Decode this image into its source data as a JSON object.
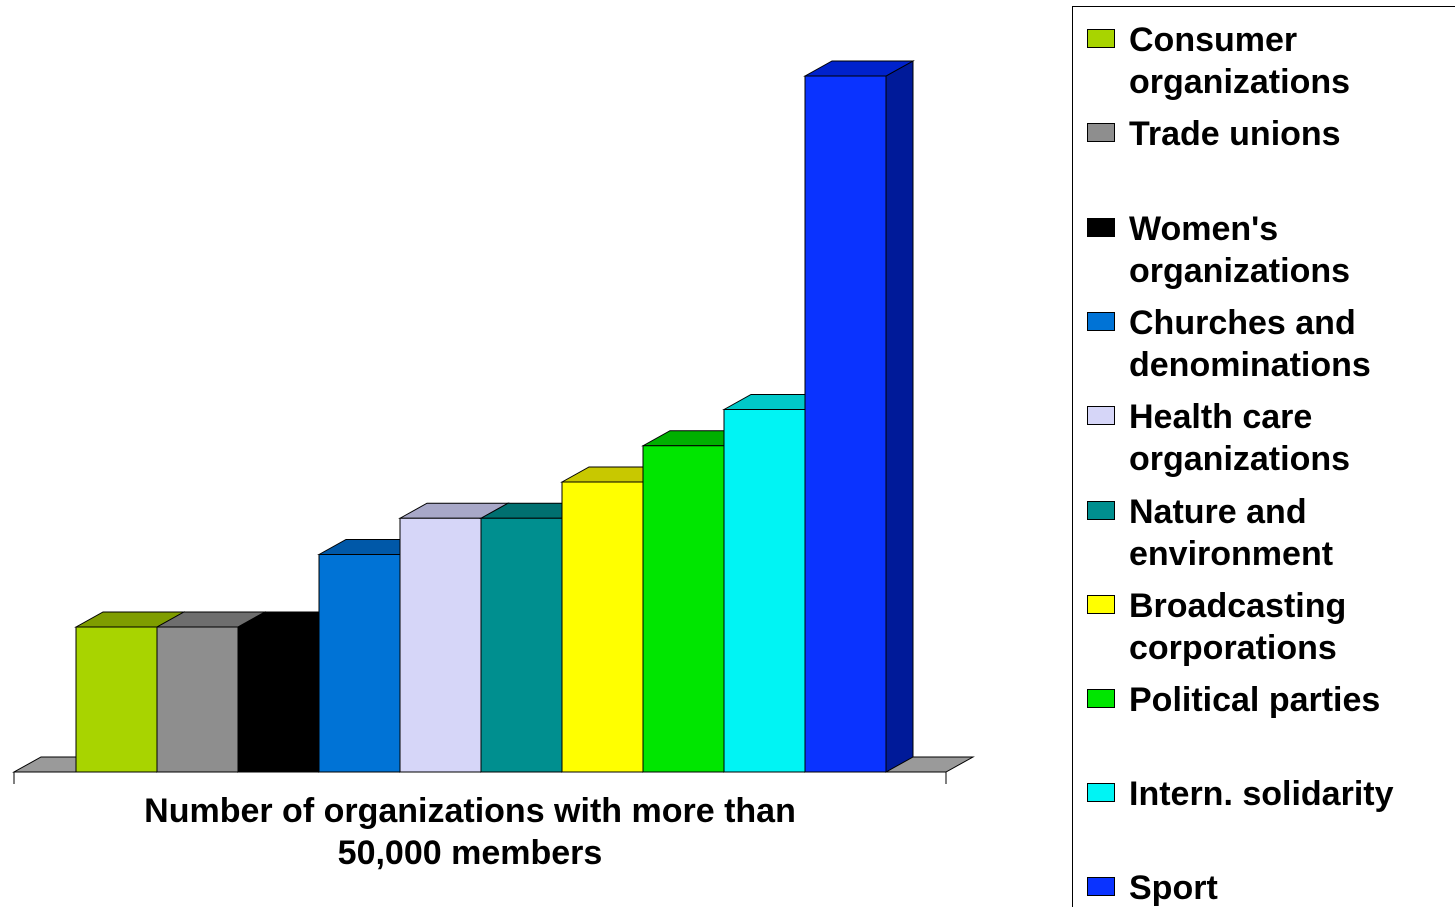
{
  "chart_data": {
    "type": "bar",
    "categories": [
      "Number of organizations with more than 50,000 members"
    ],
    "xlabel": "Number of organizations with more than\n50,000 members",
    "series": [
      {
        "name": "Consumer organizations",
        "values": [
          2
        ],
        "color": "#a8d400",
        "top": "#7f9d00",
        "side": "#6e8800"
      },
      {
        "name": "Trade unions",
        "values": [
          2
        ],
        "color": "#8e8e8e",
        "top": "#6e6e6e",
        "side": "#5c5c5c"
      },
      {
        "name": "Women's organizations",
        "values": [
          2
        ],
        "color": "#000000",
        "top": "#000000",
        "side": "#000000"
      },
      {
        "name": "Churches and denominations",
        "values": [
          3
        ],
        "color": "#0073d6",
        "top": "#0058a8",
        "side": "#004a8c"
      },
      {
        "name": "Health care organizations",
        "values": [
          3.5
        ],
        "color": "#d6d6f8",
        "top": "#a8a8c8",
        "side": "#9090b0"
      },
      {
        "name": "Nature and environment",
        "values": [
          3.5
        ],
        "color": "#008f8f",
        "top": "#007070",
        "side": "#005c5c"
      },
      {
        "name": "Broadcasting corporations",
        "values": [
          4
        ],
        "color": "#ffff00",
        "top": "#c8c800",
        "side": "#b0b000"
      },
      {
        "name": "Political parties",
        "values": [
          4.5
        ],
        "color": "#00e600",
        "top": "#00b000",
        "side": "#009000"
      },
      {
        "name": "Intern. solidarity",
        "values": [
          5
        ],
        "color": "#00f4f4",
        "top": "#00c8c8",
        "side": "#00a8a8"
      },
      {
        "name": "Sport",
        "values": [
          9.6
        ],
        "color": "#0a33ff",
        "top": "#0022cc",
        "side": "#001a99"
      }
    ]
  }
}
